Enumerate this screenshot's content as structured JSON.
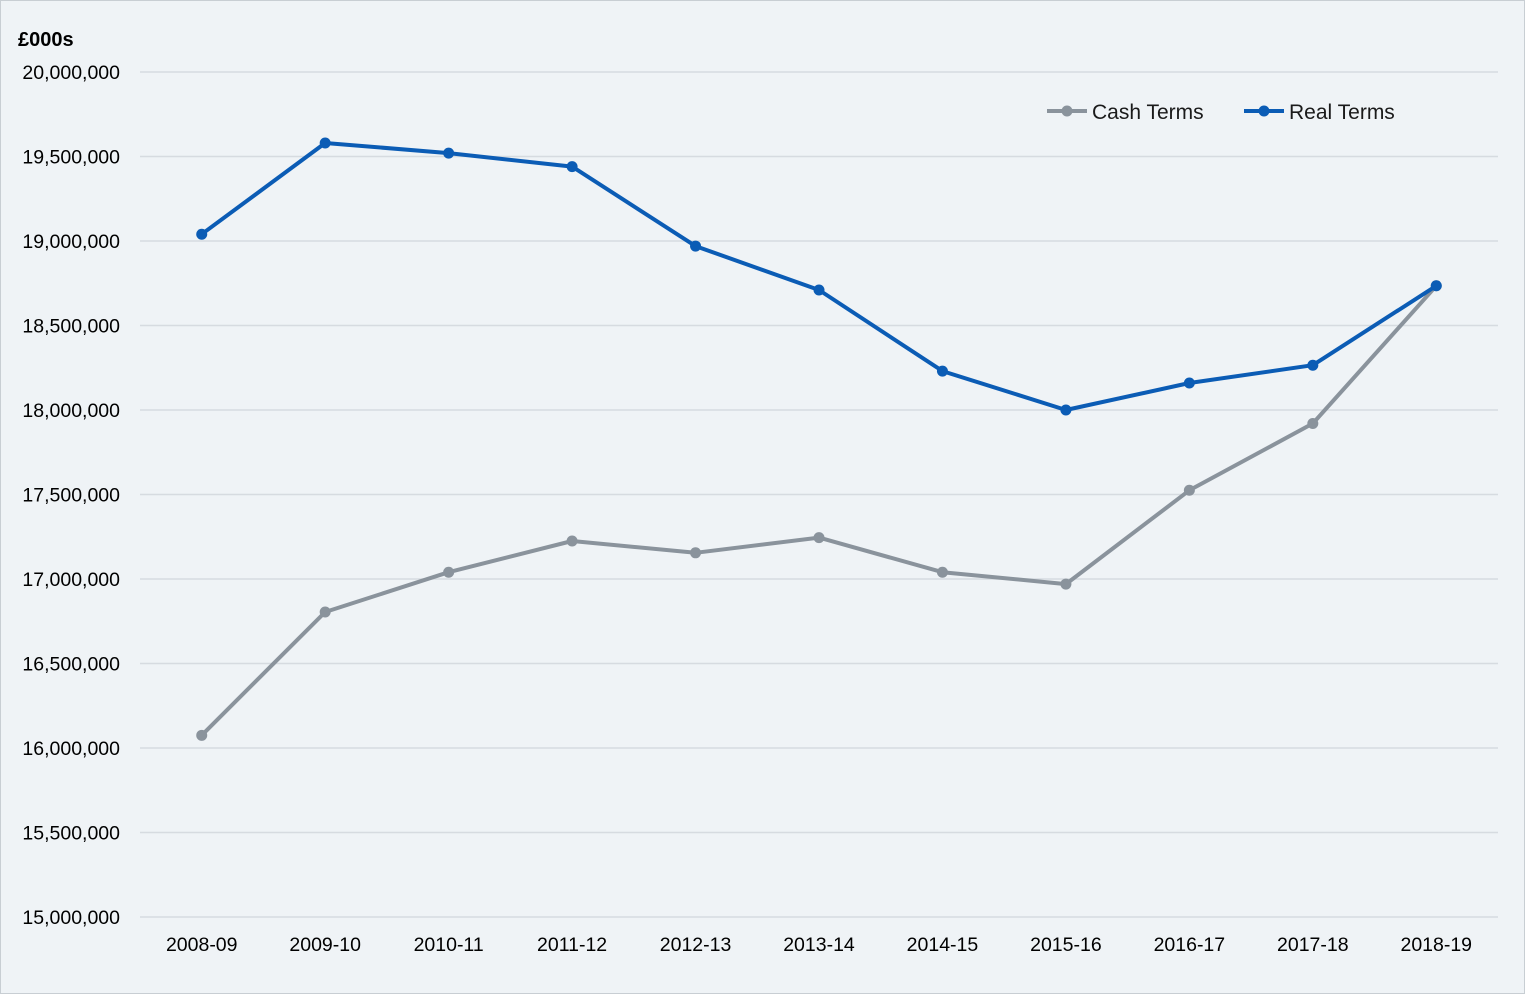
{
  "chart_data": {
    "type": "line",
    "title": "",
    "ylabel": "£000s",
    "xlabel": "",
    "categories": [
      "2008-09",
      "2009-10",
      "2010-11",
      "2011-12",
      "2012-13",
      "2013-14",
      "2014-15",
      "2015-16",
      "2016-17",
      "2017-18",
      "2018-19"
    ],
    "ylim": [
      15000000,
      20000000
    ],
    "y_ticks": [
      15000000,
      15500000,
      16000000,
      16500000,
      17000000,
      17500000,
      18000000,
      18500000,
      19000000,
      19500000,
      20000000
    ],
    "y_tick_labels": [
      "15,000,000",
      "15,500,000",
      "16,000,000",
      "16,500,000",
      "17,000,000",
      "17,500,000",
      "18,000,000",
      "18,500,000",
      "19,000,000",
      "19,500,000",
      "20,000,000"
    ],
    "grid": true,
    "legend_position": "top-right",
    "series": [
      {
        "name": "Cash Terms",
        "color": "#8a939c",
        "values": [
          16075000,
          16805000,
          17040000,
          17225000,
          17155000,
          17245000,
          17040000,
          16970000,
          17525000,
          17920000,
          18735000
        ]
      },
      {
        "name": "Real Terms",
        "color": "#0b5cb5",
        "values": [
          19040000,
          19580000,
          19520000,
          19440000,
          18970000,
          18710000,
          18230000,
          18000000,
          18160000,
          18265000,
          18735000
        ]
      }
    ]
  }
}
